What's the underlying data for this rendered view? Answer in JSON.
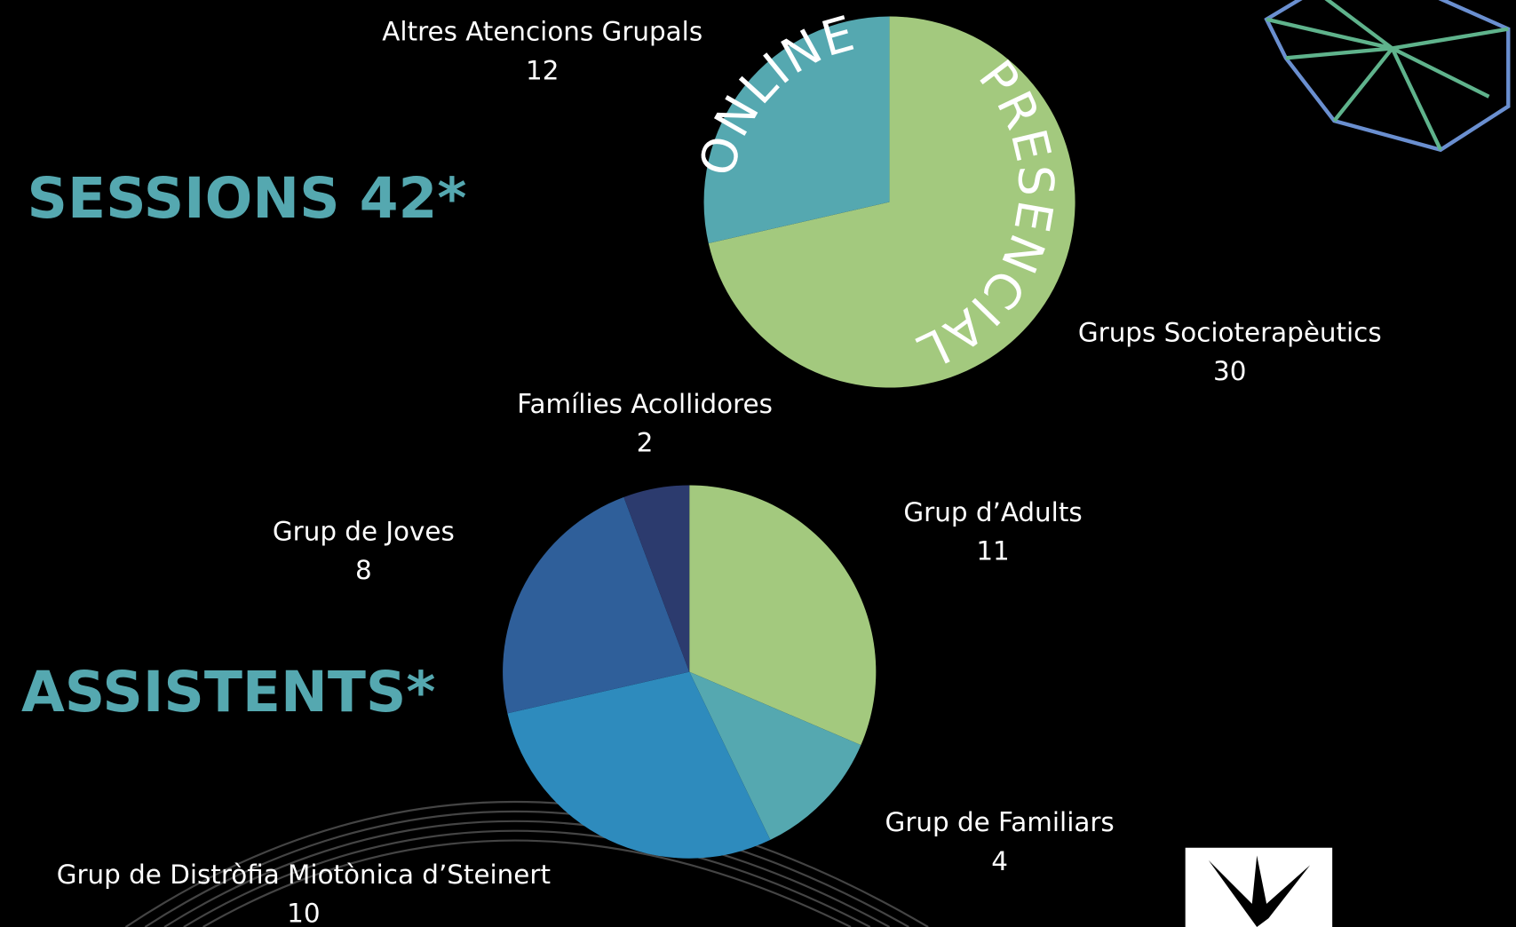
{
  "headings": [
    "SESSIONS 42*",
    "ASSISTENTS*"
  ],
  "chart_data": [
    {
      "type": "pie",
      "categories": [
        "Grups Socioterapèutics",
        "Altres Atencions Grupals"
      ],
      "values": [
        30,
        12
      ],
      "colors": [
        "#a3c97e",
        "#55a8b0"
      ],
      "annotations": [
        "PRESENCIAL",
        "ONLINE"
      ]
    },
    {
      "type": "pie",
      "categories": [
        "Grup d’Adults",
        "Grup de Familiars",
        "Grup de Distròfia Miotònica d’Steinert",
        "Grup de Joves",
        "Famílies Acollidores"
      ],
      "values": [
        11,
        4,
        10,
        8,
        2
      ],
      "colors": [
        "#a3c97e",
        "#55a8b0",
        "#2e8bbd",
        "#2f5f9a",
        "#2c3b6e"
      ]
    }
  ]
}
